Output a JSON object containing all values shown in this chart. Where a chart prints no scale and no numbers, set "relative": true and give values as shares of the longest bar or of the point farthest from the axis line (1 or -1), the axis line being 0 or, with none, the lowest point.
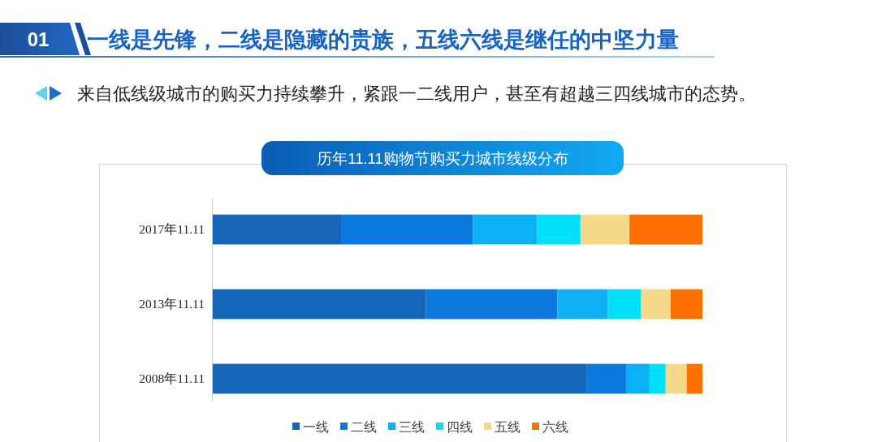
{
  "chart_data": {
    "type": "bar",
    "orientation": "horizontal",
    "stacked": true,
    "relative": true,
    "title": "历年11.11购物节购买力城市线级分布",
    "annotations": [
      "01",
      "一线是先锋，二线是隐藏的贵族，五线六线是继任的中坚力量",
      "来自低线级城市的购买力持续攀升，紧跟一二线用户，甚至有超越三四线城市的态势。"
    ],
    "categories": [
      "2017年11.11",
      "2013年11.11",
      "2008年11.11"
    ],
    "series": [
      {
        "name": "一线",
        "color": "#1565b8",
        "values": [
          0.262,
          0.435,
          0.763
        ]
      },
      {
        "name": "二线",
        "color": "#0a78dd",
        "values": [
          0.269,
          0.269,
          0.081
        ]
      },
      {
        "name": "三线",
        "color": "#0eb0f5",
        "values": [
          0.131,
          0.103,
          0.048
        ]
      },
      {
        "name": "四线",
        "color": "#00e0f8",
        "values": [
          0.089,
          0.068,
          0.033
        ]
      },
      {
        "name": "五线",
        "color": "#f5d98a",
        "values": [
          0.1,
          0.06,
          0.043
        ]
      },
      {
        "name": "六线",
        "color": "#ff7000",
        "values": [
          0.149,
          0.065,
          0.032
        ]
      }
    ],
    "legend": "bottom"
  }
}
